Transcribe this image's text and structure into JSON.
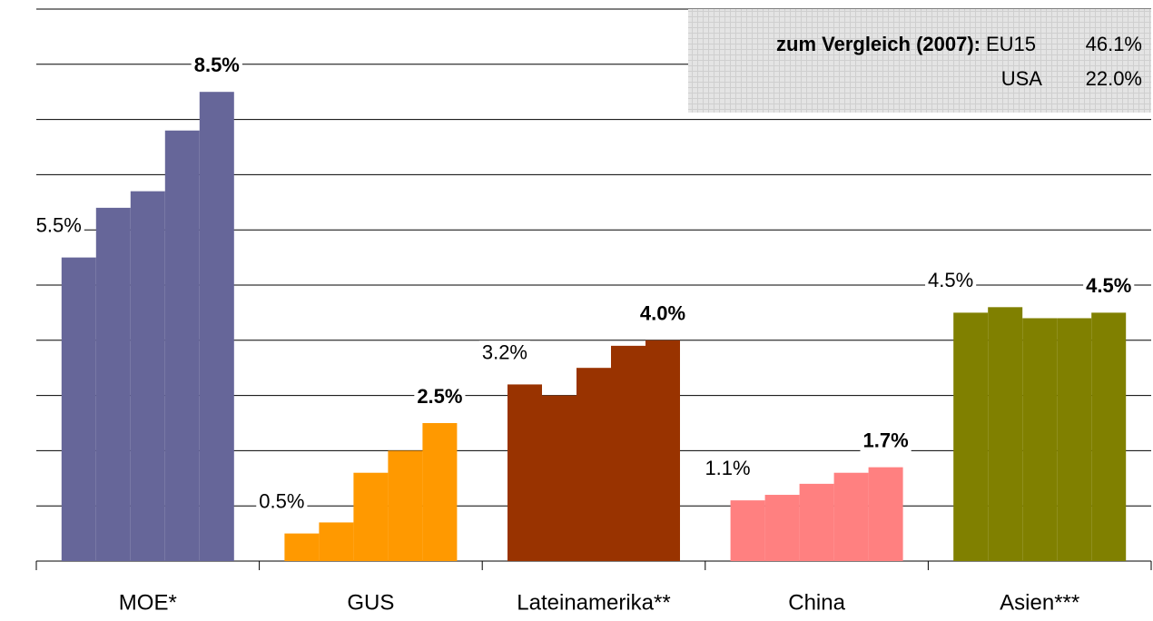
{
  "chart_data": {
    "type": "grouped-bar",
    "categories": [
      "MOE*",
      "GUS",
      "Lateinamerika**",
      "China",
      "Asien***"
    ],
    "colors": [
      "#666699",
      "#ff9900",
      "#993300",
      "#ff8080",
      "#808000"
    ],
    "values": [
      [
        5.5,
        6.4,
        6.7,
        7.8,
        8.5
      ],
      [
        0.5,
        0.7,
        1.6,
        2.0,
        2.5
      ],
      [
        3.2,
        3.0,
        3.5,
        3.9,
        4.0
      ],
      [
        1.1,
        1.2,
        1.4,
        1.6,
        1.7
      ],
      [
        4.5,
        4.6,
        4.4,
        4.4,
        4.5
      ]
    ],
    "value_labels": [
      [
        "5.5%",
        null,
        null,
        null,
        "8.5%"
      ],
      [
        "0.5%",
        null,
        null,
        null,
        "2.5%"
      ],
      [
        "3.2%",
        null,
        null,
        null,
        "4.0%"
      ],
      [
        "1.1%",
        null,
        null,
        null,
        "1.7%"
      ],
      [
        "4.5%",
        null,
        null,
        null,
        "4.5%"
      ]
    ],
    "ylim": [
      0,
      10
    ],
    "yticks": [
      0,
      1,
      2,
      3,
      4,
      5,
      6,
      7,
      8,
      9,
      10
    ],
    "grid": true,
    "comparison": {
      "title": "zum Vergleich (2007):",
      "rows": [
        {
          "name": "EU15",
          "value": "46.1%"
        },
        {
          "name": "USA",
          "value": "22.0%"
        }
      ]
    }
  }
}
